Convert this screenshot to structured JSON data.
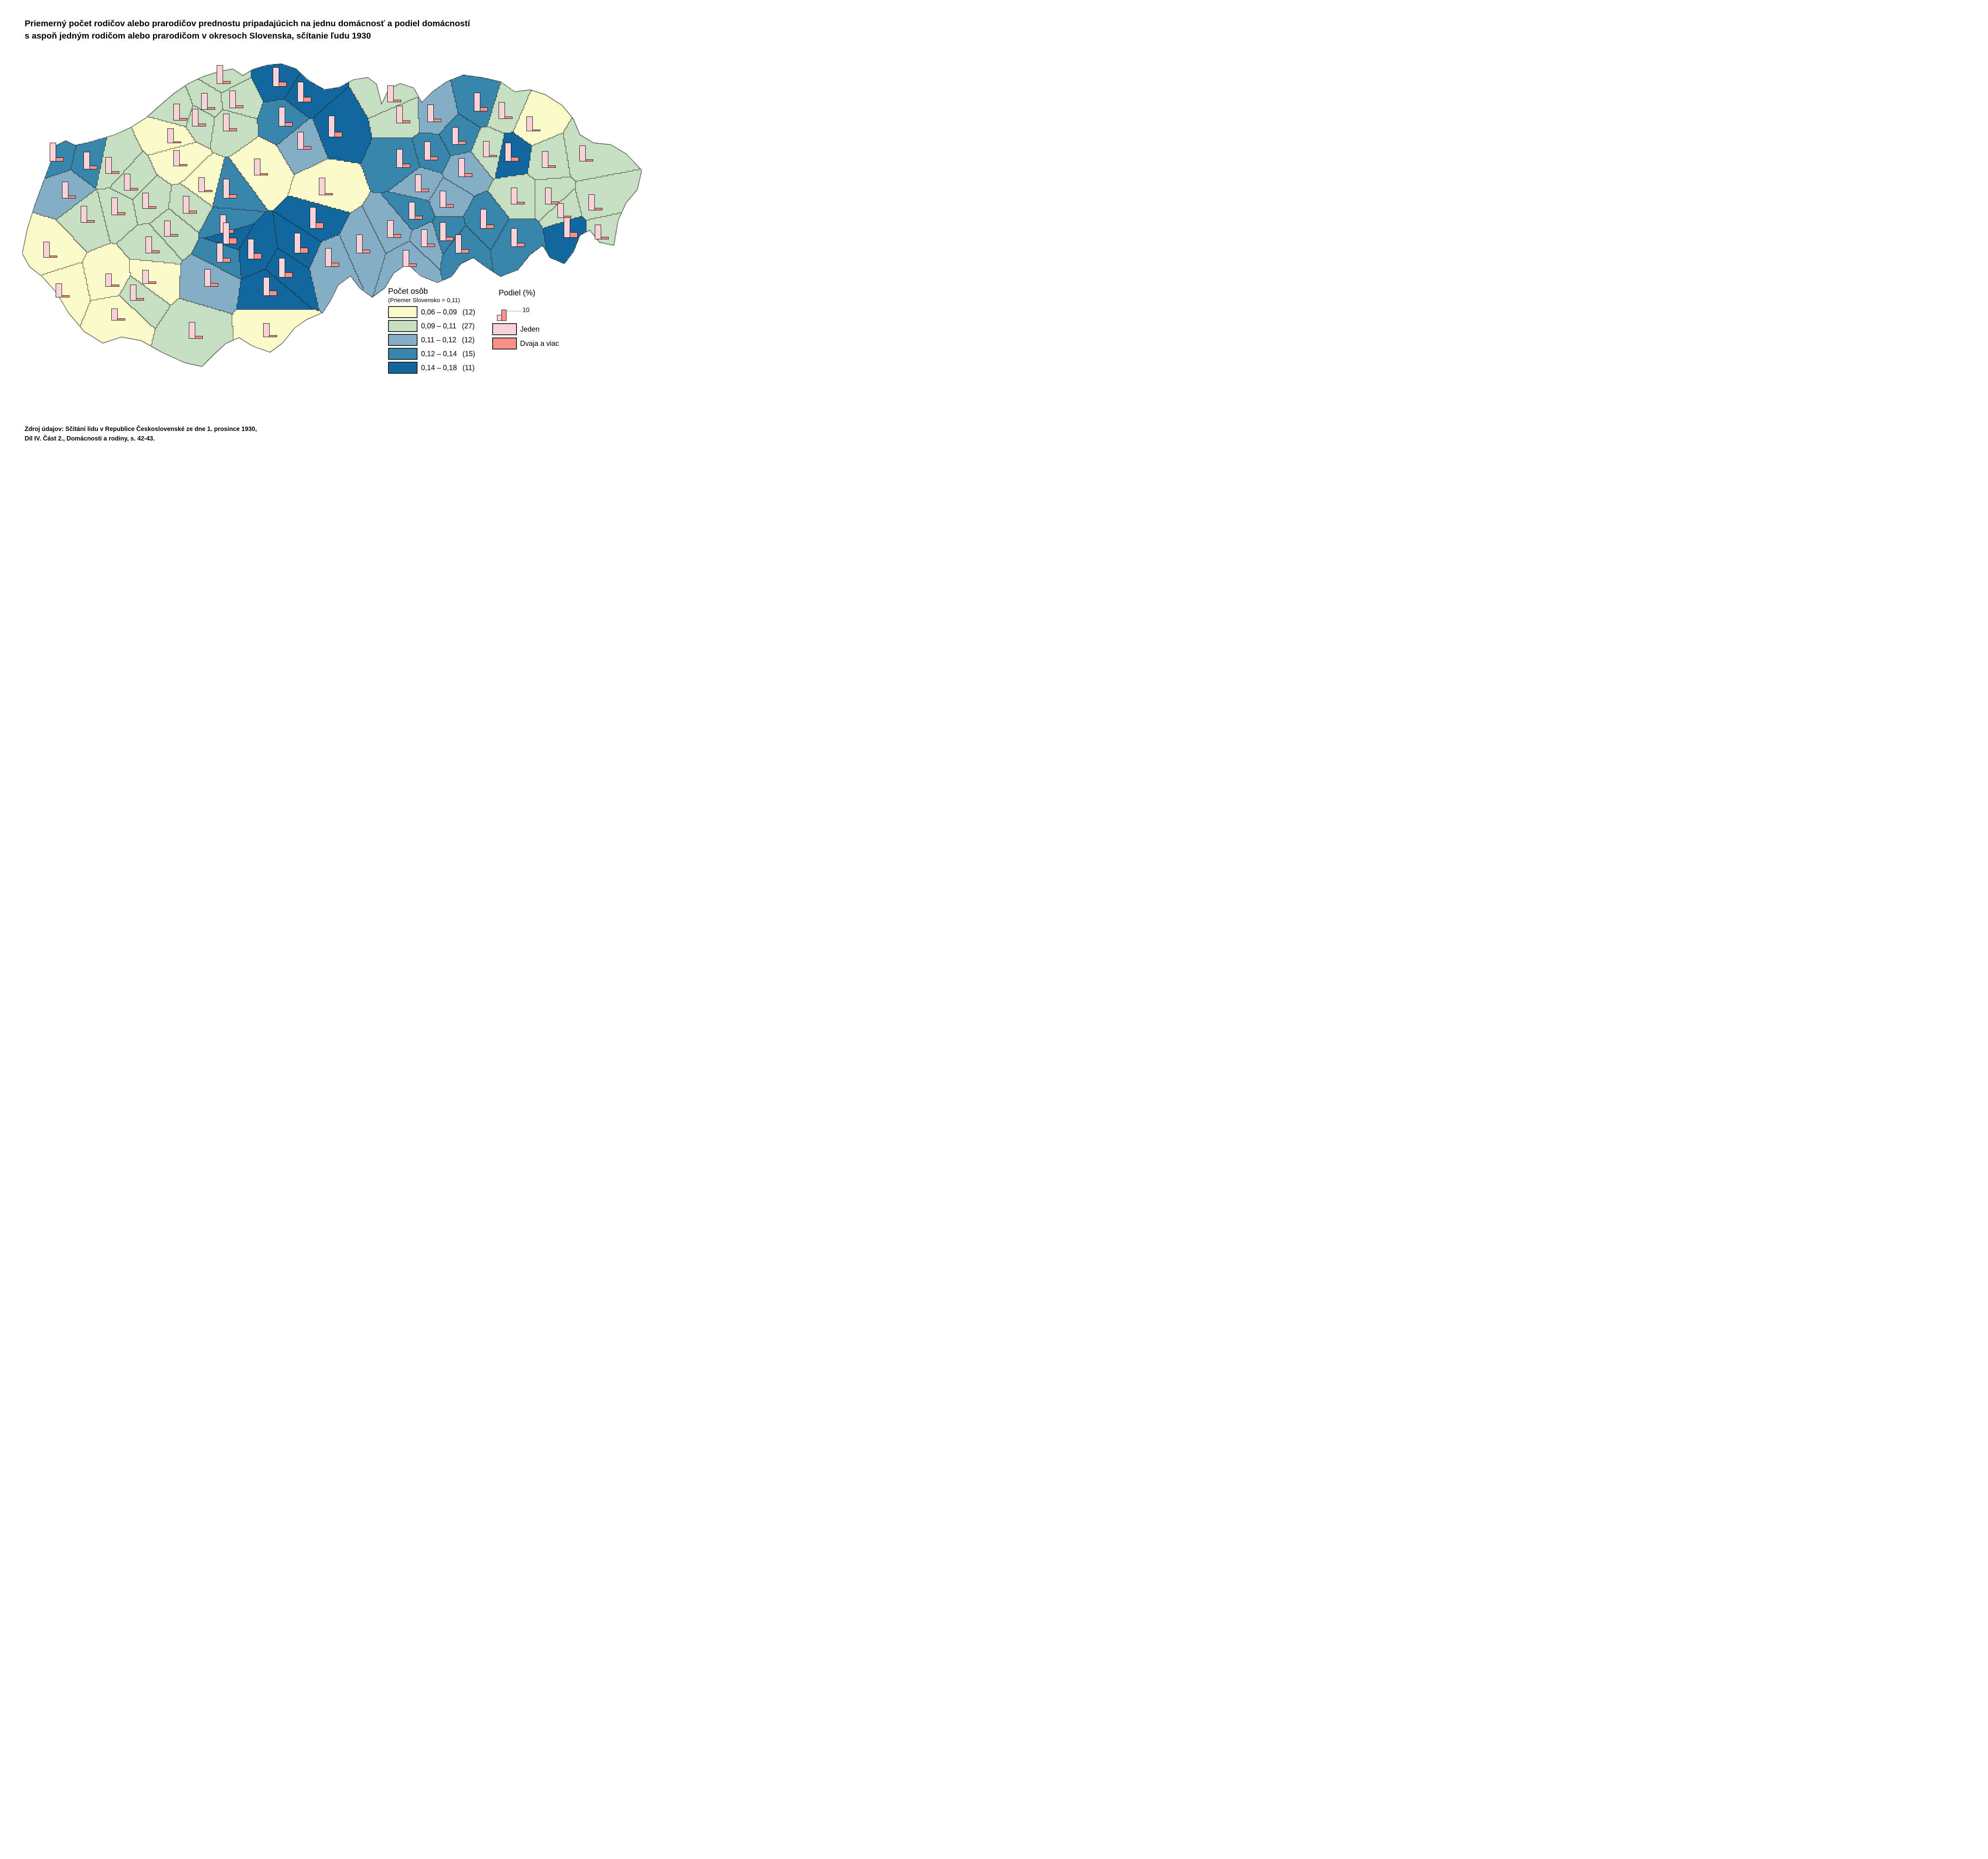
{
  "title": {
    "line1": "Priemerný počet rodičov alebo prarodičov prednostu pripadajúcich na jednu domácnosť a podiel domácností",
    "line2": "s aspoň jedným rodičom alebo prarodičom v okresoch Slovenska, sčítanie ľudu 1930"
  },
  "source": {
    "line1": "Zdroj údajov: Sčítání lidu v Republice Československé ze dne 1. prosince 1930,",
    "line2": "Díl IV. Část 2., Domácnosti a rodiny, s. 42-43."
  },
  "legend_count": {
    "title": "Počet osôb",
    "subtitle": "(Priemer Slovensko = 0,11)",
    "classes": [
      {
        "range": "0,06  –  0,09",
        "count": "(12)",
        "color": "#FBFBC9"
      },
      {
        "range": "0,09  –  0,11",
        "count": "(27)",
        "color": "#C5DFC0"
      },
      {
        "range": "0,11  –  0,12",
        "count": "(12)",
        "color": "#85AEC6"
      },
      {
        "range": "0,12  –  0,14",
        "count": "(15)",
        "color": "#3886AC"
      },
      {
        "range": "0,14  –  0,18",
        "count": "(11)",
        "color": "#10689F"
      }
    ]
  },
  "legend_share": {
    "title": "Podiel (%)",
    "ref_value": "10",
    "items": [
      {
        "label": "Jeden",
        "color": "#FAD3D9"
      },
      {
        "label": "Dvaja a viac",
        "color": "#F9908A"
      }
    ]
  },
  "chart_data": {
    "type": "map-choropleth-with-bars",
    "unit_note": "bar heights in percent, 10 % = legend reference",
    "class_colors": {
      "1": "#FBFBC9",
      "2": "#C5DFC0",
      "3": "#85AEC6",
      "4": "#3886AC",
      "5": "#10689F"
    },
    "bar_colors": {
      "jeden": "#FAD3D9",
      "dvaja": "#F9908A"
    },
    "border_color": "#222222",
    "outline": [
      [
        0.0,
        0.625
      ],
      [
        0.008,
        0.545
      ],
      [
        0.02,
        0.468
      ],
      [
        0.033,
        0.395
      ],
      [
        0.048,
        0.315
      ],
      [
        0.055,
        0.27
      ],
      [
        0.07,
        0.255
      ],
      [
        0.085,
        0.27
      ],
      [
        0.105,
        0.262
      ],
      [
        0.125,
        0.25
      ],
      [
        0.15,
        0.235
      ],
      [
        0.175,
        0.212
      ],
      [
        0.2,
        0.18
      ],
      [
        0.222,
        0.14
      ],
      [
        0.245,
        0.1
      ],
      [
        0.268,
        0.068
      ],
      [
        0.292,
        0.045
      ],
      [
        0.318,
        0.028
      ],
      [
        0.34,
        0.02
      ],
      [
        0.356,
        0.042
      ],
      [
        0.372,
        0.022
      ],
      [
        0.395,
        0.008
      ],
      [
        0.418,
        0.003
      ],
      [
        0.442,
        0.02
      ],
      [
        0.462,
        0.058
      ],
      [
        0.488,
        0.088
      ],
      [
        0.512,
        0.08
      ],
      [
        0.535,
        0.055
      ],
      [
        0.558,
        0.048
      ],
      [
        0.572,
        0.07
      ],
      [
        0.58,
        0.135
      ],
      [
        0.592,
        0.085
      ],
      [
        0.61,
        0.068
      ],
      [
        0.632,
        0.082
      ],
      [
        0.645,
        0.13
      ],
      [
        0.662,
        0.095
      ],
      [
        0.685,
        0.062
      ],
      [
        0.712,
        0.04
      ],
      [
        0.742,
        0.048
      ],
      [
        0.772,
        0.062
      ],
      [
        0.795,
        0.095
      ],
      [
        0.82,
        0.088
      ],
      [
        0.845,
        0.105
      ],
      [
        0.872,
        0.14
      ],
      [
        0.89,
        0.185
      ],
      [
        0.9,
        0.235
      ],
      [
        0.922,
        0.262
      ],
      [
        0.95,
        0.268
      ],
      [
        0.975,
        0.298
      ],
      [
        1.0,
        0.352
      ],
      [
        0.993,
        0.415
      ],
      [
        0.975,
        0.458
      ],
      [
        0.962,
        0.515
      ],
      [
        0.955,
        0.598
      ],
      [
        0.932,
        0.588
      ],
      [
        0.916,
        0.548
      ],
      [
        0.9,
        0.565
      ],
      [
        0.89,
        0.618
      ],
      [
        0.875,
        0.658
      ],
      [
        0.852,
        0.638
      ],
      [
        0.84,
        0.598
      ],
      [
        0.82,
        0.628
      ],
      [
        0.8,
        0.678
      ],
      [
        0.772,
        0.7
      ],
      [
        0.748,
        0.668
      ],
      [
        0.728,
        0.638
      ],
      [
        0.708,
        0.658
      ],
      [
        0.693,
        0.7
      ],
      [
        0.67,
        0.72
      ],
      [
        0.643,
        0.698
      ],
      [
        0.622,
        0.658
      ],
      [
        0.6,
        0.688
      ],
      [
        0.585,
        0.738
      ],
      [
        0.565,
        0.768
      ],
      [
        0.545,
        0.738
      ],
      [
        0.53,
        0.698
      ],
      [
        0.51,
        0.728
      ],
      [
        0.498,
        0.778
      ],
      [
        0.485,
        0.818
      ],
      [
        0.46,
        0.84
      ],
      [
        0.44,
        0.868
      ],
      [
        0.42,
        0.918
      ],
      [
        0.4,
        0.948
      ],
      [
        0.372,
        0.928
      ],
      [
        0.35,
        0.9
      ],
      [
        0.328,
        0.92
      ],
      [
        0.308,
        0.958
      ],
      [
        0.29,
        0.995
      ],
      [
        0.262,
        0.982
      ],
      [
        0.225,
        0.948
      ],
      [
        0.192,
        0.91
      ],
      [
        0.16,
        0.898
      ],
      [
        0.13,
        0.918
      ],
      [
        0.1,
        0.88
      ],
      [
        0.075,
        0.82
      ],
      [
        0.055,
        0.752
      ],
      [
        0.032,
        0.7
      ],
      [
        0.012,
        0.668
      ]
    ],
    "districts": [
      {
        "x": 0.045,
        "y": 0.615,
        "c": 1,
        "one": 17,
        "two": 2.0
      },
      {
        "x": 0.065,
        "y": 0.745,
        "c": 1,
        "one": 15,
        "two": 2.0
      },
      {
        "x": 0.245,
        "y": 0.24,
        "c": 1,
        "one": 16,
        "two": 1.8
      },
      {
        "x": 0.255,
        "y": 0.315,
        "c": 1,
        "one": 17,
        "two": 2.0
      },
      {
        "x": 0.385,
        "y": 0.345,
        "c": 1,
        "one": 18,
        "two": 2.2
      },
      {
        "x": 0.49,
        "y": 0.41,
        "c": 1,
        "one": 19,
        "two": 2.2
      },
      {
        "x": 0.825,
        "y": 0.2,
        "c": 1,
        "one": 16,
        "two": 1.2
      },
      {
        "x": 0.145,
        "y": 0.71,
        "c": 1,
        "one": 14,
        "two": 2.0
      },
      {
        "x": 0.205,
        "y": 0.7,
        "c": 1,
        "one": 15,
        "two": 2.4
      },
      {
        "x": 0.155,
        "y": 0.82,
        "c": 1,
        "one": 13,
        "two": 2.0
      },
      {
        "x": 0.4,
        "y": 0.875,
        "c": 1,
        "one": 15,
        "two": 2.2
      },
      {
        "x": 0.295,
        "y": 0.4,
        "c": 1,
        "one": 16,
        "two": 2.0
      },
      {
        "x": 0.105,
        "y": 0.5,
        "c": 2,
        "one": 18,
        "two": 2.6
      },
      {
        "x": 0.155,
        "y": 0.475,
        "c": 2,
        "one": 19,
        "two": 2.8
      },
      {
        "x": 0.175,
        "y": 0.395,
        "c": 2,
        "one": 18,
        "two": 2.4
      },
      {
        "x": 0.205,
        "y": 0.455,
        "c": 2,
        "one": 17,
        "two": 2.4
      },
      {
        "x": 0.145,
        "y": 0.34,
        "c": 2,
        "one": 18,
        "two": 2.6
      },
      {
        "x": 0.27,
        "y": 0.47,
        "c": 2,
        "one": 19,
        "two": 3.0
      },
      {
        "x": 0.21,
        "y": 0.6,
        "c": 2,
        "one": 18,
        "two": 2.8
      },
      {
        "x": 0.185,
        "y": 0.755,
        "c": 2,
        "one": 17,
        "two": 2.6
      },
      {
        "x": 0.28,
        "y": 0.88,
        "c": 2,
        "one": 18,
        "two": 3.0
      },
      {
        "x": 0.24,
        "y": 0.545,
        "c": 2,
        "one": 17,
        "two": 2.4
      },
      {
        "x": 0.325,
        "y": 0.045,
        "c": 2,
        "one": 20,
        "two": 3.0
      },
      {
        "x": 0.345,
        "y": 0.125,
        "c": 2,
        "one": 19,
        "two": 2.8
      },
      {
        "x": 0.3,
        "y": 0.13,
        "c": 2,
        "one": 18,
        "two": 2.6
      },
      {
        "x": 0.285,
        "y": 0.185,
        "c": 2,
        "one": 19,
        "two": 2.8
      },
      {
        "x": 0.255,
        "y": 0.165,
        "c": 2,
        "one": 18,
        "two": 2.4
      },
      {
        "x": 0.335,
        "y": 0.2,
        "c": 2,
        "one": 19,
        "two": 3.0
      },
      {
        "x": 0.6,
        "y": 0.105,
        "c": 2,
        "one": 18,
        "two": 2.6
      },
      {
        "x": 0.615,
        "y": 0.175,
        "c": 2,
        "one": 19,
        "two": 2.8
      },
      {
        "x": 0.78,
        "y": 0.16,
        "c": 2,
        "one": 18,
        "two": 2.4
      },
      {
        "x": 0.755,
        "y": 0.285,
        "c": 2,
        "one": 17,
        "two": 2.2
      },
      {
        "x": 0.85,
        "y": 0.32,
        "c": 2,
        "one": 18,
        "two": 2.6
      },
      {
        "x": 0.91,
        "y": 0.3,
        "c": 2,
        "one": 17,
        "two": 2.2
      },
      {
        "x": 0.855,
        "y": 0.44,
        "c": 2,
        "one": 18,
        "two": 2.8
      },
      {
        "x": 0.925,
        "y": 0.46,
        "c": 2,
        "one": 17,
        "two": 2.4
      },
      {
        "x": 0.875,
        "y": 0.485,
        "c": 2,
        "one": 16,
        "two": 2.2
      },
      {
        "x": 0.8,
        "y": 0.44,
        "c": 2,
        "one": 18,
        "two": 2.6
      },
      {
        "x": 0.935,
        "y": 0.555,
        "c": 2,
        "one": 16,
        "two": 2.4
      },
      {
        "x": 0.075,
        "y": 0.42,
        "c": 3,
        "one": 18,
        "two": 3.2
      },
      {
        "x": 0.455,
        "y": 0.26,
        "c": 3,
        "one": 19,
        "two": 3.6
      },
      {
        "x": 0.665,
        "y": 0.17,
        "c": 3,
        "one": 19,
        "two": 3.4
      },
      {
        "x": 0.715,
        "y": 0.35,
        "c": 3,
        "one": 20,
        "two": 3.8
      },
      {
        "x": 0.645,
        "y": 0.4,
        "c": 3,
        "one": 19,
        "two": 3.6
      },
      {
        "x": 0.685,
        "y": 0.45,
        "c": 3,
        "one": 18,
        "two": 3.4
      },
      {
        "x": 0.305,
        "y": 0.71,
        "c": 3,
        "one": 19,
        "two": 4.0
      },
      {
        "x": 0.5,
        "y": 0.645,
        "c": 3,
        "one": 20,
        "two": 4.2
      },
      {
        "x": 0.55,
        "y": 0.6,
        "c": 3,
        "one": 20,
        "two": 4.0
      },
      {
        "x": 0.6,
        "y": 0.55,
        "c": 3,
        "one": 19,
        "two": 3.8
      },
      {
        "x": 0.625,
        "y": 0.645,
        "c": 3,
        "one": 18,
        "two": 3.6
      },
      {
        "x": 0.655,
        "y": 0.58,
        "c": 3,
        "one": 19,
        "two": 3.6
      },
      {
        "x": 0.055,
        "y": 0.3,
        "c": 4,
        "one": 20,
        "two": 4.5
      },
      {
        "x": 0.11,
        "y": 0.325,
        "c": 4,
        "one": 19,
        "two": 4.0
      },
      {
        "x": 0.425,
        "y": 0.185,
        "c": 4,
        "one": 21,
        "two": 4.5
      },
      {
        "x": 0.615,
        "y": 0.32,
        "c": 4,
        "one": 20,
        "two": 4.2
      },
      {
        "x": 0.66,
        "y": 0.295,
        "c": 4,
        "one": 20,
        "two": 4.0
      },
      {
        "x": 0.705,
        "y": 0.245,
        "c": 4,
        "one": 19,
        "two": 4.0
      },
      {
        "x": 0.74,
        "y": 0.135,
        "c": 4,
        "one": 20,
        "two": 4.5
      },
      {
        "x": 0.335,
        "y": 0.42,
        "c": 4,
        "one": 21,
        "two": 4.5
      },
      {
        "x": 0.33,
        "y": 0.535,
        "c": 4,
        "one": 20,
        "two": 4.2
      },
      {
        "x": 0.75,
        "y": 0.52,
        "c": 4,
        "one": 21,
        "two": 4.5
      },
      {
        "x": 0.71,
        "y": 0.6,
        "c": 4,
        "one": 20,
        "two": 4.2
      },
      {
        "x": 0.635,
        "y": 0.49,
        "c": 4,
        "one": 19,
        "two": 4.0
      },
      {
        "x": 0.685,
        "y": 0.56,
        "c": 4,
        "one": 20,
        "two": 4.2
      },
      {
        "x": 0.325,
        "y": 0.63,
        "c": 4,
        "one": 21,
        "two": 4.8
      },
      {
        "x": 0.8,
        "y": 0.58,
        "c": 4,
        "one": 20,
        "two": 4.5
      },
      {
        "x": 0.415,
        "y": 0.055,
        "c": 5,
        "one": 21,
        "two": 5.0
      },
      {
        "x": 0.455,
        "y": 0.105,
        "c": 5,
        "one": 22,
        "two": 5.5
      },
      {
        "x": 0.505,
        "y": 0.22,
        "c": 5,
        "one": 23,
        "two": 5.5
      },
      {
        "x": 0.79,
        "y": 0.3,
        "c": 5,
        "one": 20,
        "two": 4.8
      },
      {
        "x": 0.885,
        "y": 0.55,
        "c": 5,
        "one": 22,
        "two": 6.0
      },
      {
        "x": 0.475,
        "y": 0.52,
        "c": 5,
        "one": 23,
        "two": 6.5
      },
      {
        "x": 0.45,
        "y": 0.6,
        "c": 5,
        "one": 22,
        "two": 6.0
      },
      {
        "x": 0.425,
        "y": 0.68,
        "c": 5,
        "one": 21,
        "two": 5.5
      },
      {
        "x": 0.375,
        "y": 0.62,
        "c": 5,
        "one": 22,
        "two": 6.5
      },
      {
        "x": 0.335,
        "y": 0.57,
        "c": 5,
        "one": 23,
        "two": 7.0
      },
      {
        "x": 0.4,
        "y": 0.74,
        "c": 5,
        "one": 20,
        "two": 5.5
      }
    ]
  }
}
